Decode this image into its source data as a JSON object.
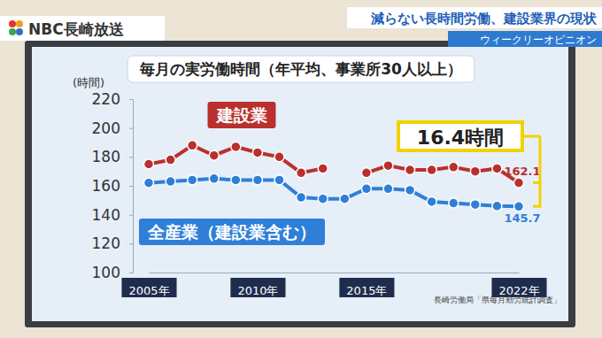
{
  "header": {
    "logo": "NBC長崎放送",
    "headline": "減らない長時間労働、建設業界の現状",
    "segment": "ウィークリーオピニオン"
  },
  "chart_data": {
    "type": "line",
    "title": "毎月の実労働時間（年平均、事業所30人以上）",
    "y_label": "(時間)",
    "source": "長崎労働局「県毎月勤労統計調査」",
    "categories": [
      "2005年",
      null,
      null,
      null,
      null,
      "2010年",
      null,
      null,
      null,
      null,
      "2015年",
      null,
      null,
      null,
      null,
      null,
      null,
      "2022年"
    ],
    "series": [
      {
        "name": "建設業",
        "color": "#b9302e",
        "marker": "circle",
        "values": [
          175,
          178,
          188,
          181,
          187,
          183,
          180,
          169,
          172,
          null,
          169,
          174,
          171,
          171,
          173,
          170,
          172,
          162.1
        ],
        "value_labels": [
          null,
          null,
          null,
          null,
          null,
          null,
          null,
          null,
          null,
          null,
          null,
          null,
          null,
          null,
          null,
          null,
          null,
          "162.1"
        ]
      },
      {
        "name": "全産業（建設業含む）",
        "color": "#2f7fd8",
        "marker": "circle",
        "values": [
          162,
          163,
          164,
          165,
          164,
          164,
          164,
          152,
          151,
          151,
          158,
          158,
          157,
          149,
          148,
          147,
          146,
          145.7
        ],
        "value_labels": [
          null,
          null,
          null,
          null,
          null,
          null,
          null,
          null,
          null,
          null,
          null,
          null,
          null,
          null,
          null,
          null,
          null,
          "145.7"
        ]
      }
    ],
    "annotations": [
      {
        "text": "16.4時間"
      }
    ],
    "ylim": [
      100,
      220
    ],
    "yticks": [
      100,
      120,
      140,
      160,
      180,
      200,
      220
    ],
    "grid": false
  }
}
